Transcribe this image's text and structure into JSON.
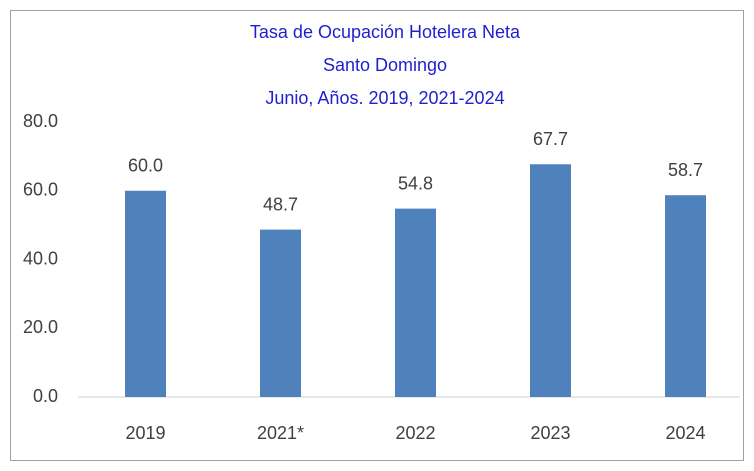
{
  "chart_data": {
    "type": "bar",
    "title": [
      "Tasa de Ocupación Hotelera Neta",
      "Santo Domingo",
      "Junio, Años. 2019, 2021-2024"
    ],
    "categories": [
      "2019",
      "2021*",
      "2022",
      "2023",
      "2024"
    ],
    "values": [
      60.0,
      48.7,
      54.8,
      67.7,
      58.7
    ],
    "value_labels": [
      "60.0",
      "48.7",
      "54.8",
      "67.7",
      "58.7"
    ],
    "color": "#4f81bd",
    "ylim": [
      0,
      80
    ],
    "yticks": [
      {
        "value": 0,
        "label": "0.0"
      },
      {
        "value": 20,
        "label": "20.0"
      },
      {
        "value": 40,
        "label": "40.0"
      },
      {
        "value": 60,
        "label": "60.0"
      },
      {
        "value": 80,
        "label": "80.0"
      }
    ],
    "grid": false
  }
}
